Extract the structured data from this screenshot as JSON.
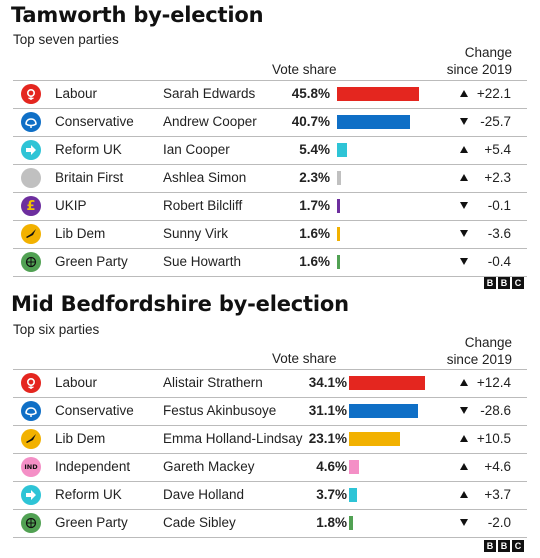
{
  "bbc_logo": [
    "B",
    "B",
    "C"
  ],
  "chart_data": [
    {
      "type": "bar",
      "title": "Tamworth by-election",
      "subtitle": "Top seven parties",
      "value_header": "Vote share",
      "change_header": [
        "Change",
        "since 2019"
      ],
      "bar_scale_max": 45.8,
      "rows": [
        {
          "party": "Labour",
          "candidate": "Sarah Edwards",
          "share": 45.8,
          "share_label": "45.8%",
          "change": 22.1,
          "change_label": "+22.1",
          "direction": "up",
          "color": "#e4261f",
          "icon": "labour-rose-icon"
        },
        {
          "party": "Conservative",
          "candidate": "Andrew Cooper",
          "share": 40.7,
          "share_label": "40.7%",
          "change": -25.7,
          "change_label": "-25.7",
          "direction": "down",
          "color": "#0f6fc6",
          "icon": "conservative-tree-icon"
        },
        {
          "party": "Reform UK",
          "candidate": "Ian Cooper",
          "share": 5.4,
          "share_label": "5.4%",
          "change": 5.4,
          "change_label": "+5.4",
          "direction": "up",
          "color": "#2ec4d6",
          "icon": "reform-arrow-icon"
        },
        {
          "party": "Britain First",
          "candidate": "Ashlea Simon",
          "share": 2.3,
          "share_label": "2.3%",
          "change": 2.3,
          "change_label": "+2.3",
          "direction": "up",
          "color": "#c0c0c0",
          "icon": "britain-first-icon"
        },
        {
          "party": "UKIP",
          "candidate": "Robert Bilcliff",
          "share": 1.7,
          "share_label": "1.7%",
          "change": -0.1,
          "change_label": "-0.1",
          "direction": "down",
          "color": "#6d2e9e",
          "icon": "ukip-pound-icon"
        },
        {
          "party": "Lib Dem",
          "candidate": "Sunny Virk",
          "share": 1.6,
          "share_label": "1.6%",
          "change": -3.6,
          "change_label": "-3.6",
          "direction": "down",
          "color": "#f2b100",
          "icon": "libdem-bird-icon"
        },
        {
          "party": "Green Party",
          "candidate": "Sue Howarth",
          "share": 1.6,
          "share_label": "1.6%",
          "change": -0.4,
          "change_label": "-0.4",
          "direction": "down",
          "color": "#51a153",
          "icon": "green-globe-icon"
        }
      ]
    },
    {
      "type": "bar",
      "title": "Mid Bedfordshire by-election",
      "subtitle": "Top six parties",
      "value_header": "Vote share",
      "change_header": [
        "Change",
        "since 2019"
      ],
      "bar_scale_max": 34.1,
      "rows": [
        {
          "party": "Labour",
          "candidate": "Alistair Strathern",
          "share": 34.1,
          "share_label": "34.1%",
          "change": 12.4,
          "change_label": "+12.4",
          "direction": "up",
          "color": "#e4261f",
          "icon": "labour-rose-icon"
        },
        {
          "party": "Conservative",
          "candidate": "Festus Akinbusoye",
          "share": 31.1,
          "share_label": "31.1%",
          "change": -28.6,
          "change_label": "-28.6",
          "direction": "down",
          "color": "#0f6fc6",
          "icon": "conservative-tree-icon"
        },
        {
          "party": "Lib Dem",
          "candidate": "Emma Holland-Lindsay",
          "share": 23.1,
          "share_label": "23.1%",
          "change": 10.5,
          "change_label": "+10.5",
          "direction": "up",
          "color": "#f2b100",
          "icon": "libdem-bird-icon"
        },
        {
          "party": "Independent",
          "candidate": "Gareth Mackey",
          "share": 4.6,
          "share_label": "4.6%",
          "change": 4.6,
          "change_label": "+4.6",
          "direction": "up",
          "color": "#f48fc6",
          "icon": "independent-icon",
          "icon_text": "IND"
        },
        {
          "party": "Reform UK",
          "candidate": "Dave Holland",
          "share": 3.7,
          "share_label": "3.7%",
          "change": 3.7,
          "change_label": "+3.7",
          "direction": "up",
          "color": "#2ec4d6",
          "icon": "reform-arrow-icon"
        },
        {
          "party": "Green Party",
          "candidate": "Cade Sibley",
          "share": 1.8,
          "share_label": "1.8%",
          "change": -2.0,
          "change_label": "-2.0",
          "direction": "down",
          "color": "#51a153",
          "icon": "green-globe-icon"
        }
      ]
    }
  ]
}
